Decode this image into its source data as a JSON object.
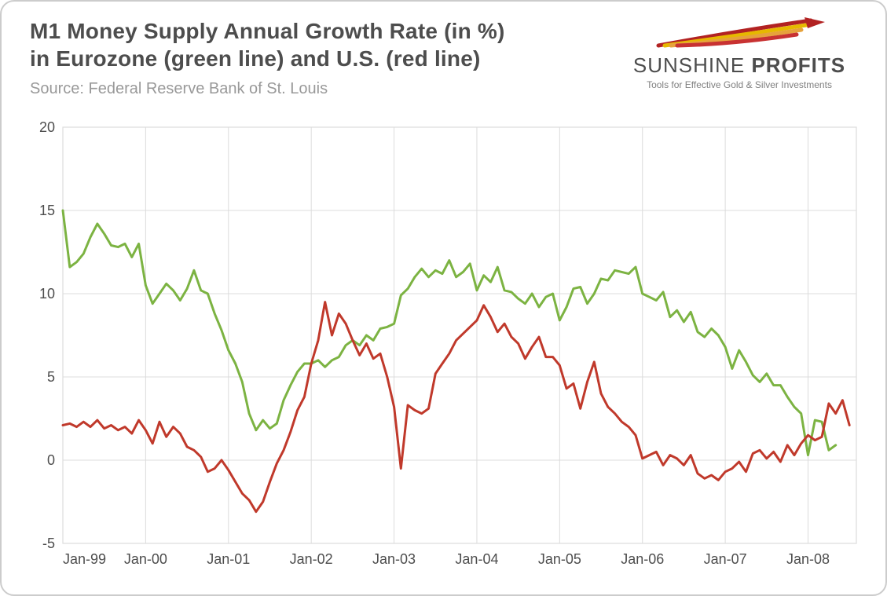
{
  "title_line1": "M1 Money Supply Annual Growth Rate (in %)",
  "title_line2": "in Eurozone (green line) and U.S. (red line)",
  "source": "Source: Federal Reserve Bank of St. Louis",
  "logo": {
    "brand_part1": "SUNSHINE",
    "brand_part2": "PROFITS",
    "tagline": "Tools for Effective Gold & Silver Investments",
    "swoosh_colors": [
      "#b22222",
      "#e6b800",
      "#e6a23c",
      "#c83232"
    ]
  },
  "chart": {
    "type": "line",
    "background_color": "#ffffff",
    "plot_bg": "#ffffff",
    "grid_color": "#dcdcdc",
    "axis_color": "#b0b0b0",
    "border_color": "#cccccc",
    "title_fontsize": 28,
    "title_color": "#4d4d4d",
    "source_fontsize": 20,
    "source_color": "#999999",
    "tick_fontsize": 18,
    "tick_color": "#4d4d4d",
    "line_width": 3,
    "x": {
      "min": 0,
      "max": 115,
      "ticks": [
        0,
        12,
        24,
        36,
        48,
        60,
        72,
        84,
        96,
        108
      ],
      "tick_labels": [
        "Jan-99",
        "Jan-00",
        "Jan-01",
        "Jan-02",
        "Jan-03",
        "Jan-04",
        "Jan-05",
        "Jan-06",
        "Jan-07",
        "Jan-08"
      ]
    },
    "y": {
      "min": -5,
      "max": 20,
      "ticks": [
        -5,
        0,
        5,
        10,
        15,
        20
      ]
    },
    "series": [
      {
        "name": "Eurozone",
        "color": "#7cb342",
        "values": [
          15.0,
          11.6,
          11.9,
          12.4,
          13.4,
          14.2,
          13.6,
          12.9,
          12.8,
          13.0,
          12.2,
          13.0,
          10.5,
          9.4,
          10.0,
          10.6,
          10.2,
          9.6,
          10.3,
          11.4,
          10.2,
          10.0,
          8.8,
          7.8,
          6.6,
          5.8,
          4.7,
          2.8,
          1.8,
          2.4,
          1.9,
          2.2,
          3.6,
          4.5,
          5.3,
          5.8,
          5.8,
          6.0,
          5.6,
          6.0,
          6.2,
          6.9,
          7.2,
          6.9,
          7.5,
          7.2,
          7.9,
          8.0,
          8.2,
          9.9,
          10.3,
          11.0,
          11.5,
          11.0,
          11.4,
          11.2,
          12.0,
          11.0,
          11.3,
          11.8,
          10.2,
          11.1,
          10.7,
          11.6,
          10.2,
          10.1,
          9.7,
          9.4,
          10.0,
          9.2,
          9.8,
          10.0,
          8.4,
          9.2,
          10.3,
          10.4,
          9.4,
          10.0,
          10.9,
          10.8,
          11.4,
          11.3,
          11.2,
          11.6,
          10.0,
          9.8,
          9.6,
          10.1,
          8.6,
          9.0,
          8.3,
          8.9,
          7.7,
          7.4,
          7.9,
          7.5,
          6.8,
          5.5,
          6.6,
          5.9,
          5.1,
          4.7,
          5.2,
          4.5,
          4.5,
          3.8,
          3.2,
          2.8,
          0.3,
          2.4,
          2.3,
          0.6,
          0.9
        ]
      },
      {
        "name": "U.S.",
        "color": "#c0392b",
        "values": [
          2.1,
          2.2,
          2.0,
          2.3,
          2.0,
          2.4,
          1.9,
          2.1,
          1.8,
          2.0,
          1.6,
          2.4,
          1.8,
          1.0,
          2.3,
          1.4,
          2.0,
          1.6,
          0.8,
          0.6,
          0.2,
          -0.7,
          -0.5,
          0.0,
          -0.6,
          -1.3,
          -2.0,
          -2.4,
          -3.1,
          -2.5,
          -1.3,
          -0.2,
          0.6,
          1.7,
          3.0,
          3.8,
          5.8,
          7.2,
          9.5,
          7.5,
          8.8,
          8.2,
          7.2,
          6.3,
          7.0,
          6.1,
          6.4,
          5.0,
          3.2,
          -0.5,
          3.3,
          3.0,
          2.8,
          3.1,
          5.2,
          5.8,
          6.4,
          7.2,
          7.6,
          8.0,
          8.4,
          9.3,
          8.6,
          7.7,
          8.2,
          7.4,
          7.0,
          6.1,
          6.8,
          7.4,
          6.2,
          6.2,
          5.7,
          4.3,
          4.6,
          3.1,
          4.7,
          5.9,
          4.0,
          3.2,
          2.8,
          2.3,
          2.0,
          1.5,
          0.1,
          0.3,
          0.5,
          -0.3,
          0.3,
          0.1,
          -0.3,
          0.3,
          -0.8,
          -1.1,
          -0.9,
          -1.2,
          -0.7,
          -0.5,
          -0.1,
          -0.7,
          0.4,
          0.6,
          0.1,
          0.5,
          -0.1,
          0.9,
          0.3,
          1.0,
          1.5,
          1.2,
          1.4,
          3.4,
          2.8,
          3.6,
          2.1
        ]
      }
    ]
  }
}
